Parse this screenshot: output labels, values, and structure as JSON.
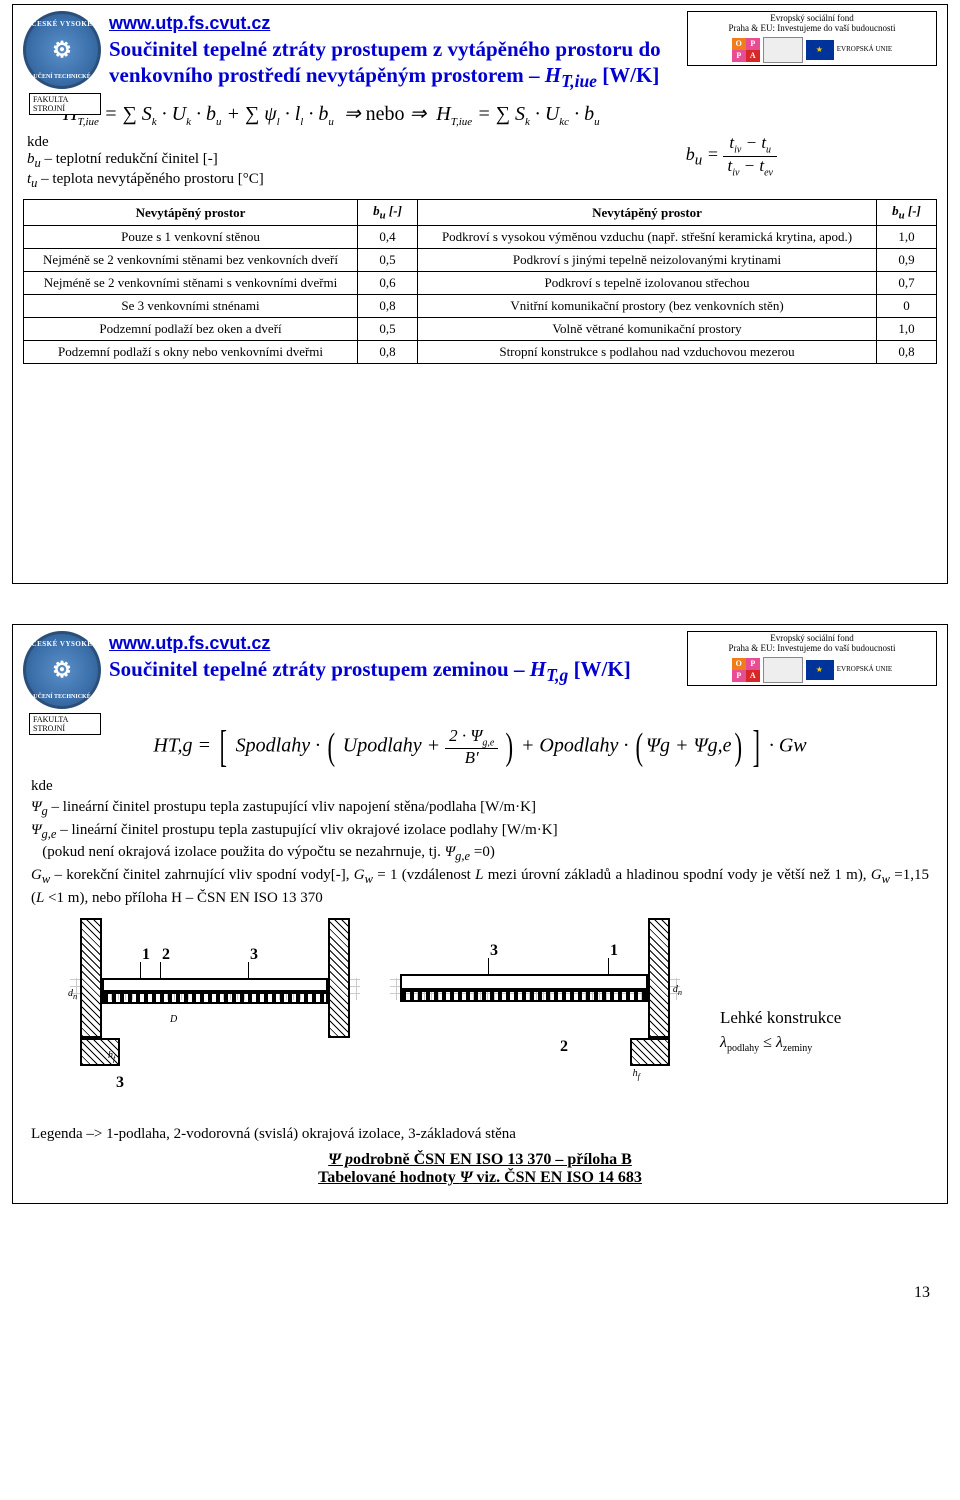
{
  "eu_header": {
    "line1": "Evropský sociální fond",
    "line2": "Praha & EU: Investujeme do vaší budoucnosti",
    "opvk": "OP\nPA",
    "eu_label": "EVROPSKÁ UNIE"
  },
  "url": "www.utp.fs.cvut.cz",
  "faculty": "FAKULTA STROJNÍ",
  "logo_top": "ČESKÉ VYSOKÉ",
  "logo_bot": "UČENÍ TECHNICKÉ",
  "slide1": {
    "title": "Součinitel tepelné ztráty prostupem z vytápěného prostoru do venkovního prostředí nevytápěným prostorem – H_{T,iue} [W/K]",
    "formula_plain": "H_{T,iue} = Σ S_k · U_k · b_u + Σ ψ_l · l_l · b_u  ⇒ nebo ⇒  H_{T,iue} = Σ S_k · U_{kc} · b_u",
    "kde": "kde",
    "kde1_var": "b_u",
    "kde1_txt": " – teplotní redukční činitel [-]",
    "kde2_var": "t_u",
    "kde2_txt": " – teplota nevytápěného prostoru [°C]",
    "bu_formula": "b_u = (t_iv − t_u) / (t_iv − t_ev)",
    "table": {
      "head": [
        "Nevytápěný prostor",
        "b_u [-]",
        "Nevytápěný prostor",
        "b_u [-]"
      ],
      "rows": [
        [
          "Pouze s 1 venkovní stěnou",
          "0,4",
          "Podkroví s vysokou výměnou vzduchu (např. střešní keramická krytina, apod.)",
          "1,0"
        ],
        [
          "Nejméně se 2 venkovními stěnami bez venkovních dveří",
          "0,5",
          "Podkroví s jinými tepelně neizolovanými krytinami",
          "0,9"
        ],
        [
          "Nejméně se 2 venkovními stěnami s venkovními dveřmi",
          "0,6",
          "Podkroví s tepelně izolovanou střechou",
          "0,7"
        ],
        [
          "Se 3 venkovními stnénami",
          "0,8",
          "Vnitřní komunikační prostory (bez venkovních stěn)",
          "0"
        ],
        [
          "Podzemní podlaží bez oken a dveří",
          "0,5",
          "Volně větrané komunikační prostory",
          "1,0"
        ],
        [
          "Podzemní podlaží s okny nebo venkovními dveřmi",
          "0,8",
          "Stropní konstrukce s podlahou nad vzduchovou mezerou",
          "0,8"
        ]
      ]
    }
  },
  "slide2": {
    "title": "Součinitel tepelné ztráty prostupem zeminou – H_{T,g} [W/K]",
    "formula": "H_{T,g} = [ S_podlahy · ( U_podlahy + 2·Ψ_{g,e} / B′ ) + O_podlahy · ( Ψ_g + Ψ_{g,e} ) ] · G_w",
    "kde": "kde",
    "def1_var": "Ψ_g",
    "def1_txt": " – lineární činitel prostupu tepla zastupující vliv napojení stěna/podlaha [W/m·K]",
    "def2_var": "Ψ_{g,e}",
    "def2_txt": " – lineární činitel prostupu tepla zastupující vliv okrajové izolace podlahy [W/m·K]",
    "def3_txt": "(pokud není okrajová izolace použita do výpočtu se nezahrnuje, tj. Ψ_{g,e} =0)",
    "def4": "G_w – korekční činitel zahrnující vliv spodní vody[-], G_w = 1 (vzdálenost L mezi úrovní základů a hladinou spodní vody je větší než 1 m), G_w =1,15 (L <1 m), nebo příloha H – ČSN EN ISO 13 370",
    "diagram_caption": "Lehké konstrukce",
    "lambda": "λ_podlahy ≤ λ_zeminy",
    "legend": "Legenda –> 1-podlaha, 2-vodorovná (svislá) okrajová izolace, 3-základová stěna",
    "footer1": "Ψ podrobně ČSN EN ISO 13 370 – příloha B",
    "footer2": "Tabelované hodnoty Ψ viz. ČSN EN ISO 14 683",
    "dim_labels": {
      "D": "D",
      "h": "h",
      "dn": "d_n"
    },
    "nums": [
      "1",
      "2",
      "3"
    ]
  },
  "page_number": "13",
  "colors": {
    "title_blue": "#0000d0",
    "logo_blue": "#3b6faa",
    "bg": "#ffffff",
    "text": "#000000"
  }
}
